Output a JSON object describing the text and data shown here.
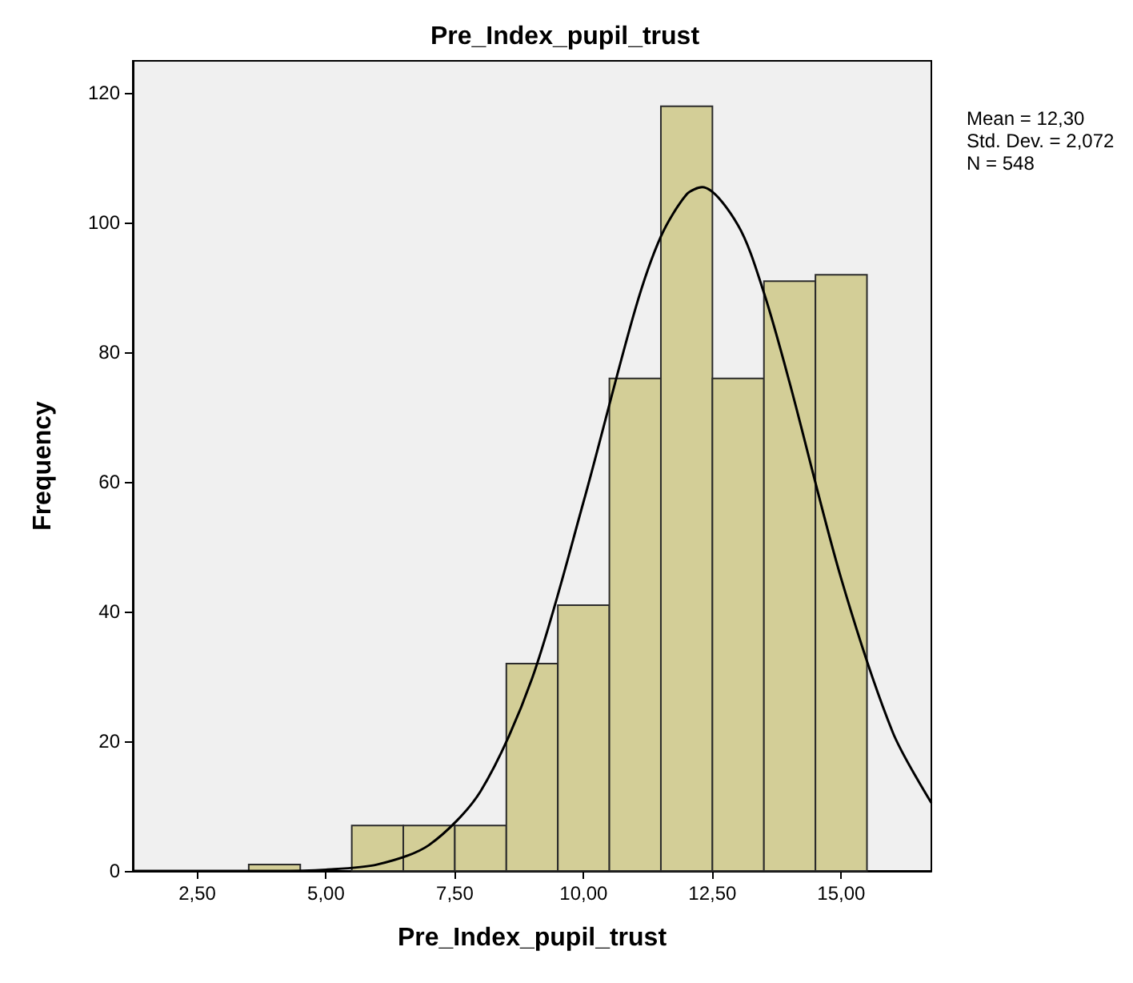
{
  "chart_data": {
    "type": "histogram",
    "title": "Pre_Index_pupil_trust",
    "xlabel": "Pre_Index_pupil_trust",
    "ylabel": "Frequency",
    "bins": [
      3.5,
      4.5,
      5.5,
      6.5,
      7.5,
      8.5,
      9.5,
      10.5,
      11.5,
      12.5,
      13.5,
      14.5,
      15.5
    ],
    "values": [
      1,
      0,
      7,
      7,
      7,
      32,
      41,
      76,
      118,
      76,
      91,
      92
    ],
    "color": "#d3ce97",
    "series": [
      {
        "type": "line",
        "color": "#000000",
        "x": [
          1.25,
          3,
          4,
          5,
          6,
          7,
          8,
          9,
          10,
          11,
          11.5,
          12,
          12.3,
          13,
          13.5,
          14,
          15,
          16,
          16.75
        ],
        "values": [
          0,
          0,
          0,
          0.2,
          1.0,
          4.0,
          12.3,
          29.7,
          57.0,
          86.6,
          97.9,
          104.4,
          105.5,
          99.6,
          89.2,
          75.3,
          45.1,
          21.4,
          10.5
        ]
      }
    ],
    "marker": "none",
    "xlim": [
      1.25,
      16.75
    ],
    "xticks": [
      {
        "value": 2.5,
        "label": "2,50"
      },
      {
        "value": 5,
        "label": "5,00"
      },
      {
        "value": 7.5,
        "label": "7,50"
      },
      {
        "value": 10,
        "label": "10,00"
      },
      {
        "value": 12.5,
        "label": "12,50"
      },
      {
        "value": 15,
        "label": "15,00"
      }
    ],
    "ylim": [
      0,
      125
    ],
    "yticks": [
      0,
      20,
      40,
      60,
      80,
      100,
      120
    ],
    "grid": false,
    "annotations": [
      "Mean = 12,30",
      "Std. Dev. = 2,072",
      "N = 548"
    ]
  }
}
